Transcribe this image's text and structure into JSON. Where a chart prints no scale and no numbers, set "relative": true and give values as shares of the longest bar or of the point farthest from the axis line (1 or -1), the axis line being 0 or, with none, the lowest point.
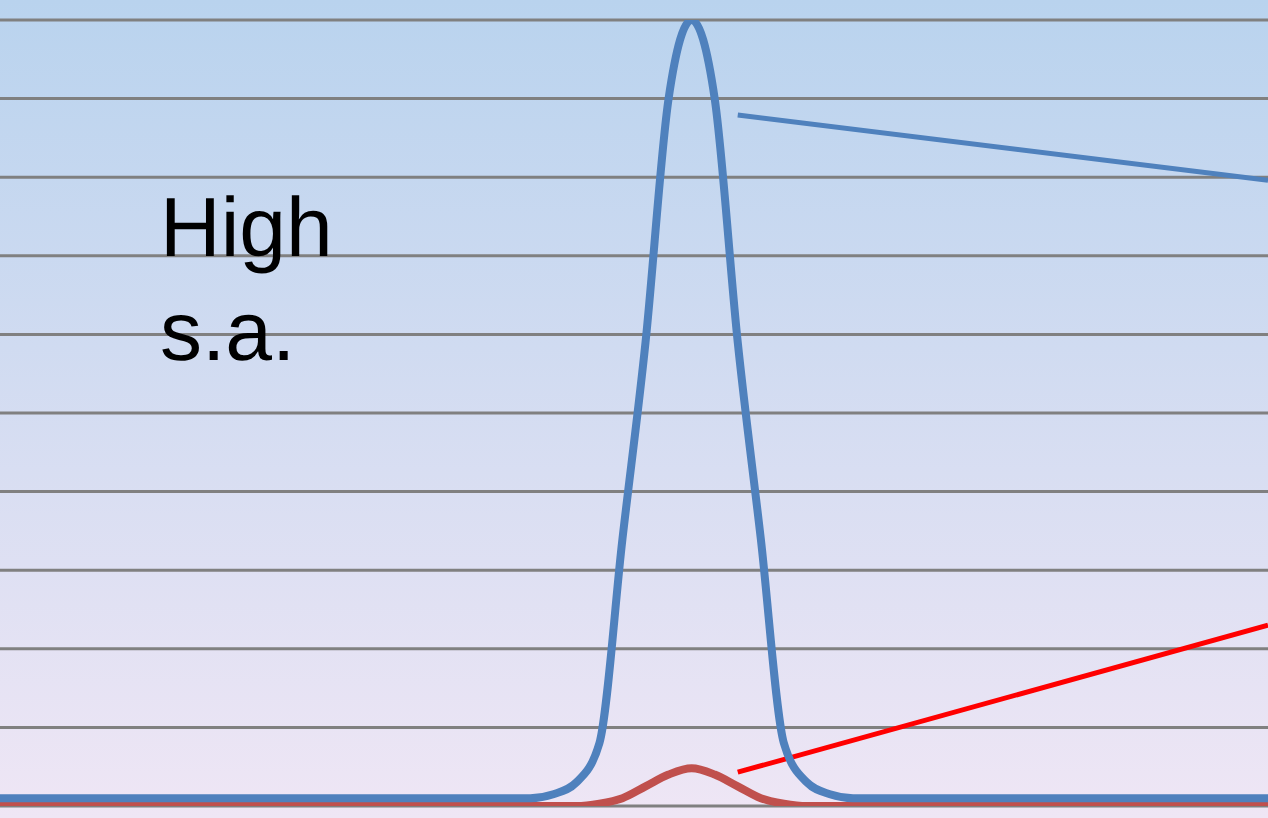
{
  "chart_data": {
    "type": "line",
    "relative": true,
    "grid": "y",
    "legend": false,
    "marker": "none",
    "line_style": "solid",
    "annotations": [
      "High s.a."
    ],
    "categories": [
      null,
      null,
      null,
      null,
      null,
      null,
      null,
      null,
      null,
      null,
      null,
      null,
      null,
      null,
      null,
      null,
      null,
      null,
      null,
      null,
      null,
      null,
      null,
      null,
      null,
      null,
      null,
      null,
      null,
      null,
      null,
      null,
      null,
      null,
      null,
      null,
      null,
      null,
      null,
      null,
      null,
      null,
      null,
      null,
      null,
      null,
      null,
      null,
      null,
      null,
      null,
      null,
      null,
      null,
      null,
      null
    ],
    "series": [
      {
        "color": "#4f81bd",
        "values": [
          0.01,
          0.01,
          0.01,
          0.01,
          0.01,
          0.01,
          0.01,
          0.01,
          0.01,
          0.01,
          0.01,
          0.01,
          0.01,
          0.01,
          0.01,
          0.01,
          0.01,
          0.01,
          0.01,
          0.01,
          0.01,
          0.01,
          0.01,
          0.01,
          0.015,
          0.03,
          0.08,
          0.34,
          0.59,
          0.9,
          1,
          0.9,
          0.59,
          0.34,
          0.08,
          0.03,
          0.015,
          0.01,
          0.01,
          0.01,
          0.01,
          0.01,
          0.01,
          0.01,
          0.01,
          0.01,
          0.01,
          0.01,
          0.01,
          0.01,
          0.01,
          0.01,
          0.01,
          0.01,
          0.01,
          0.01
        ]
      },
      {
        "color": "#c0504d",
        "values": [
          0,
          0,
          0,
          0,
          0,
          0,
          0,
          0,
          0,
          0,
          0,
          0,
          0,
          0,
          0,
          0,
          0,
          0,
          0,
          0,
          0,
          0,
          0,
          0,
          0,
          0,
          0.003,
          0.01,
          0.025,
          0.04,
          0.048,
          0.04,
          0.025,
          0.01,
          0.003,
          0,
          0,
          0,
          0,
          0,
          0,
          0,
          0,
          0,
          0,
          0,
          0,
          0,
          0,
          0,
          0,
          0,
          0,
          0,
          0,
          0
        ]
      },
      {
        "type": "line",
        "color": "#4f81bd",
        "values": [
          null,
          null,
          null,
          null,
          null,
          null,
          null,
          null,
          null,
          null,
          null,
          null,
          null,
          null,
          null,
          null,
          null,
          null,
          null,
          null,
          null,
          null,
          null,
          null,
          null,
          null,
          null,
          null,
          null,
          null,
          null,
          null,
          0.879,
          null,
          null,
          null,
          null,
          null,
          null,
          null,
          null,
          null,
          null,
          null,
          null,
          null,
          null,
          null,
          null,
          null,
          null,
          null,
          null,
          null,
          null,
          0.796
        ]
      },
      {
        "type": "line",
        "color": "#ff0000",
        "values": [
          null,
          null,
          null,
          null,
          null,
          null,
          null,
          null,
          null,
          null,
          null,
          null,
          null,
          null,
          null,
          null,
          null,
          null,
          null,
          null,
          null,
          null,
          null,
          null,
          null,
          null,
          null,
          null,
          null,
          null,
          null,
          null,
          0.043,
          null,
          null,
          null,
          null,
          null,
          null,
          null,
          null,
          null,
          null,
          null,
          null,
          null,
          null,
          null,
          null,
          null,
          null,
          null,
          null,
          null,
          null,
          0.23
        ]
      }
    ]
  }
}
